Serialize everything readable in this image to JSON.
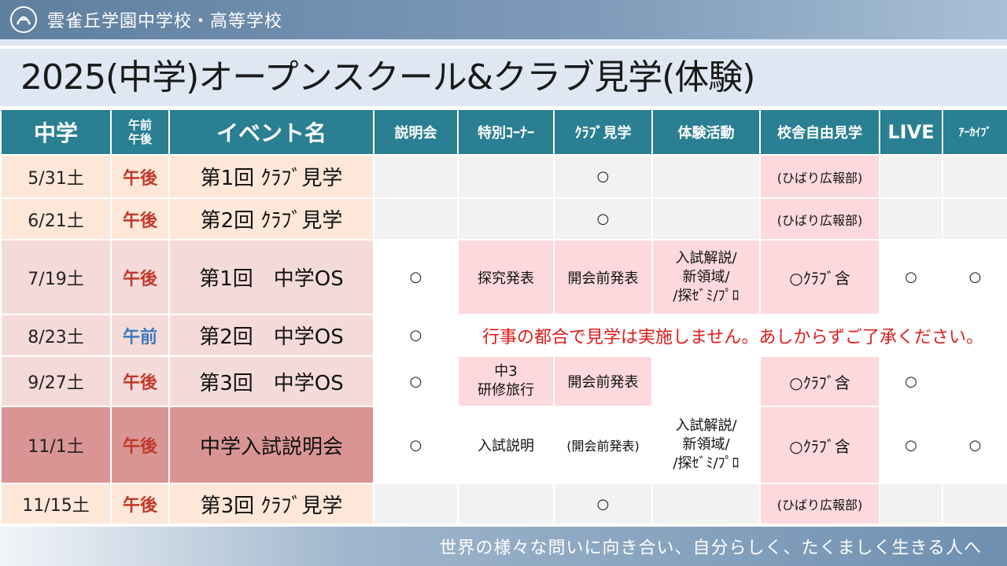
{
  "header": {
    "school_name": "雲雀丘学園中学校・高等学校",
    "logo_icon": "school-crest-icon"
  },
  "title": "2025(中学)オープンスクール&クラブ見学(体験)",
  "table": {
    "headers": {
      "grade": "中学",
      "ampm_line1": "午前",
      "ampm_line2": "午後",
      "event_name": "イベント名",
      "briefing": "説明会",
      "special_corner": "特別ｺｰﾅｰ",
      "club_visit": "ｸﾗﾌﾞ見学",
      "experience": "体験活動",
      "campus_tour": "校舎自由見学",
      "live": "LIVE",
      "archive": "ｱｰｶｲﾌﾞ"
    },
    "rows": [
      {
        "date": "5/31土",
        "ampm": "午後",
        "event": "第1回 ｸﾗﾌﾞ見学",
        "briefing": "",
        "special": "",
        "club": "○",
        "experience": "",
        "tour": "(ひばり広報部)",
        "live": "",
        "archive": ""
      },
      {
        "date": "6/21土",
        "ampm": "午後",
        "event": "第2回 ｸﾗﾌﾞ見学",
        "briefing": "",
        "special": "",
        "club": "○",
        "experience": "",
        "tour": "(ひばり広報部)",
        "live": "",
        "archive": ""
      },
      {
        "date": "7/19土",
        "ampm": "午後",
        "event": "第1回　中学OS",
        "briefing": "○",
        "special": "探究発表",
        "club": "開会前発表",
        "experience_lines": [
          "入試解説/",
          "新領域/",
          "/探ｾﾞﾐ/ﾌﾟﾛ"
        ],
        "tour": "○ｸﾗﾌﾞ含",
        "live": "○",
        "archive": "○"
      },
      {
        "date": "8/23土",
        "ampm": "午前",
        "event": "第2回　中学OS",
        "briefing": "○",
        "note": "行事の都合で見学は実施しません。あしからずご了承ください。"
      },
      {
        "date": "9/27土",
        "ampm": "午後",
        "event": "第3回　中学OS",
        "briefing": "○",
        "special_lines": [
          "中3",
          "研修旅行"
        ],
        "club": "開会前発表",
        "experience": "",
        "tour": "○ｸﾗﾌﾞ含",
        "live": "○",
        "archive": ""
      },
      {
        "date": "11/1土",
        "ampm": "午後",
        "event": "中学入試説明会",
        "briefing": "○",
        "special": "入試説明",
        "club": "(開会前発表)",
        "experience_lines": [
          "入試解説/",
          "新領域/",
          "/探ｾﾞﾐ/ﾌﾟﾛ"
        ],
        "tour": "○ｸﾗﾌﾞ含",
        "live": "○",
        "archive": "○"
      },
      {
        "date": "11/15土",
        "ampm": "午後",
        "event": "第3回 ｸﾗﾌﾞ見学",
        "briefing": "",
        "special": "",
        "club": "○",
        "experience": "",
        "tour": "(ひばり広報部)",
        "live": "",
        "archive": ""
      }
    ]
  },
  "footer": {
    "motto": "世界の様々な問いに向き合い、自分らしく、たくましく生きる人へ"
  },
  "colors": {
    "header_teal": "#2a7f92",
    "pm_red": "#c0392b",
    "am_blue": "#3a7abf",
    "note_red": "#e01b1b",
    "exam_row": "#d99594",
    "peach": "#fde7d8",
    "pink": "#fdd9dd"
  }
}
